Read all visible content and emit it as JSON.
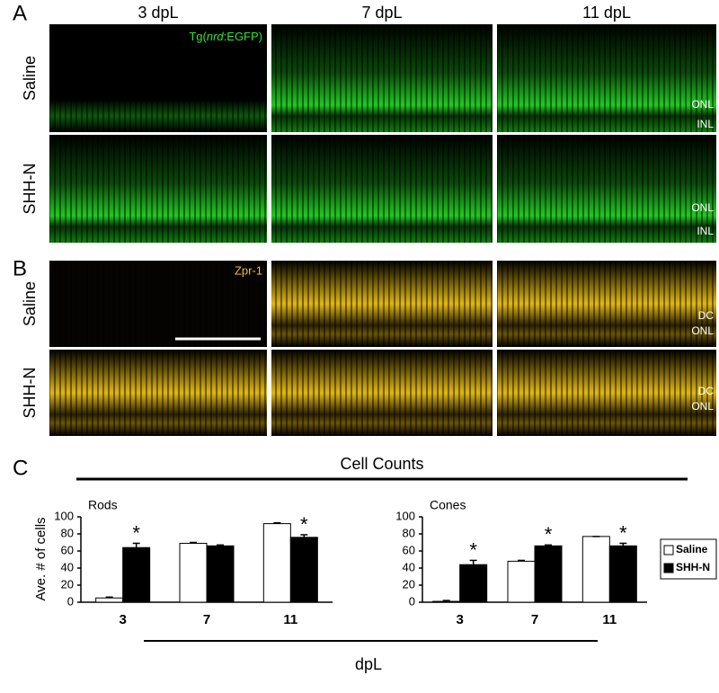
{
  "panel_labels": [
    "A",
    "B",
    "C"
  ],
  "columns": [
    "3 dpL",
    "7 dpL",
    "11 dpL"
  ],
  "rows": [
    "Saline",
    "SHH-N"
  ],
  "panel_a": {
    "marker": {
      "prefix": "Tg(",
      "italic": "nrd",
      "suffix": ":EGFP)"
    },
    "layer_labels": [
      "ONL",
      "INL"
    ]
  },
  "panel_b": {
    "marker": "Zpr-1",
    "layer_labels": [
      "DC",
      "ONL"
    ]
  },
  "section_c": {
    "title": "Cell Counts",
    "ylabel": "Ave. # of cells",
    "xlabel": "dpL"
  },
  "chart_data": [
    {
      "type": "bar",
      "title": "Rods",
      "categories": [
        "3",
        "7",
        "11"
      ],
      "series": [
        {
          "color": "#ffffff",
          "values": [
            5,
            69,
            92
          ],
          "errors": [
            1,
            1,
            1
          ],
          "annotations": [
            null,
            null,
            null
          ]
        },
        {
          "color": "#000000",
          "values": [
            64,
            66,
            76
          ],
          "errors": [
            5,
            1,
            3
          ],
          "annotations": [
            "*",
            null,
            "*"
          ]
        }
      ],
      "ylim": [
        0,
        100
      ],
      "yticks": [
        0,
        20,
        40,
        60,
        80,
        100
      ],
      "legend": false
    },
    {
      "type": "bar",
      "title": "Cones",
      "categories": [
        "3",
        "7",
        "11"
      ],
      "series": [
        {
          "name": "Saline",
          "color": "#ffffff",
          "values": [
            1,
            48,
            77
          ],
          "errors": [
            1,
            1,
            0
          ],
          "annotations": [
            null,
            null,
            null
          ]
        },
        {
          "name": "SHH-N",
          "color": "#000000",
          "values": [
            44,
            66,
            66
          ],
          "errors": [
            5,
            1,
            3
          ],
          "annotations": [
            "*",
            "*",
            "*"
          ]
        }
      ],
      "ylim": [
        0,
        100
      ],
      "yticks": [
        0,
        20,
        40,
        60,
        80,
        100
      ],
      "legend": true
    }
  ]
}
